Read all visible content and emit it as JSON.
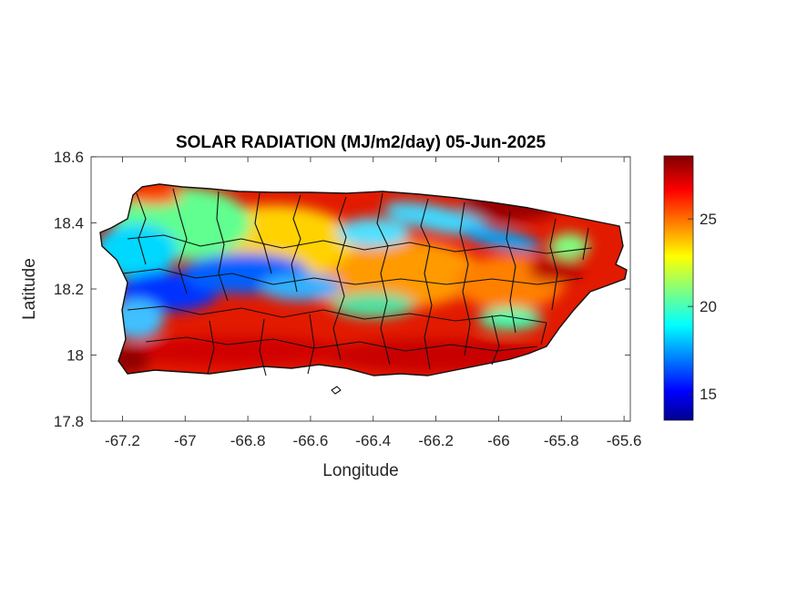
{
  "figure": {
    "title": "SOLAR RADIATION (MJ/m2/day) 05-Jun-2025",
    "xlabel": "Longitude",
    "ylabel": "Latitude"
  },
  "chart_data": {
    "type": "heatmap",
    "title": "SOLAR RADIATION (MJ/m2/day) 05-Jun-2025",
    "xlabel": "Longitude",
    "ylabel": "Latitude",
    "xlim": [
      -67.3,
      -65.58
    ],
    "ylim": [
      17.8,
      18.6
    ],
    "x_ticks": [
      -67.2,
      -67,
      -66.8,
      -66.6,
      -66.4,
      -66.2,
      -66,
      -65.8,
      -65.6
    ],
    "x_tick_labels": [
      "-67.2",
      "-67",
      "-66.8",
      "-66.6",
      "-66.4",
      "-66.2",
      "-66",
      "-65.8",
      "-65.6"
    ],
    "y_ticks": [
      17.8,
      18,
      18.2,
      18.4,
      18.6
    ],
    "y_tick_labels": [
      "17.8",
      "18",
      "18.2",
      "18.4",
      "18.6"
    ],
    "grid": false,
    "colormap": "jet",
    "colorbar": {
      "range": [
        13.5,
        28.6
      ],
      "ticks": [
        15,
        20,
        25
      ],
      "tick_labels": [
        "15",
        "20",
        "25"
      ],
      "location": "right"
    },
    "region": "Puerto Rico",
    "field_description_regions": [
      {
        "area": "west-central interior",
        "approx_value": 16
      },
      {
        "area": "northwest coast",
        "approx_value": 20
      },
      {
        "area": "north-central interior",
        "approx_value": 24
      },
      {
        "area": "south coast",
        "approx_value": 27
      },
      {
        "area": "northeast",
        "approx_value": 28
      }
    ]
  }
}
